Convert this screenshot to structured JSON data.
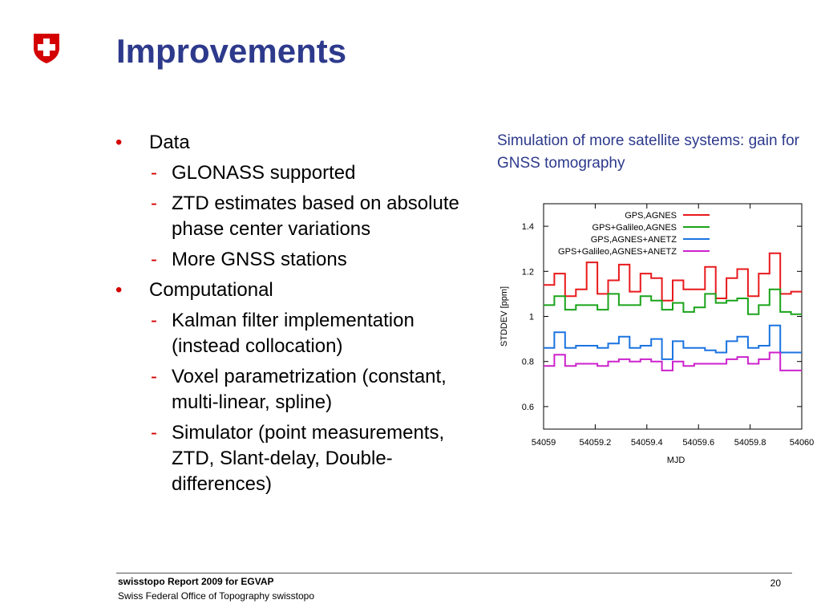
{
  "title": "Improvements",
  "logo_icon": "swiss-cross-shield-icon",
  "brand_color": "#d40000",
  "title_color": "#2d3a8c",
  "bullets": [
    {
      "label": "Data",
      "sub": [
        "GLONASS supported",
        "ZTD estimates based on absolute phase center variations",
        "More GNSS stations"
      ]
    },
    {
      "label": "Computational",
      "sub": [
        "Kalman filter implementation (instead collocation)",
        "Voxel parametrization (constant, multi-linear, spline)",
        "Simulator (point measurements, ZTD, Slant-delay, Double-differences)"
      ]
    }
  ],
  "chart_caption": "Simulation of more satellite systems: gain for GNSS tomography",
  "chart_data": {
    "type": "line",
    "step": true,
    "xlabel": "MJD",
    "ylabel": "STDDEV [ppm]",
    "xlim": [
      54059,
      54060
    ],
    "ylim": [
      0.5,
      1.5
    ],
    "xticks": [
      "54059",
      "54059.2",
      "54059.4",
      "54059.6",
      "54059.8",
      "54060"
    ],
    "yticks": [
      "0.6",
      "0.8",
      "1",
      "1.2",
      "1.4"
    ],
    "legend_position": "top-right",
    "grid": false,
    "x": [
      54059.0,
      54059.0417,
      54059.0833,
      54059.125,
      54059.1667,
      54059.2083,
      54059.25,
      54059.2917,
      54059.3333,
      54059.375,
      54059.4167,
      54059.4583,
      54059.5,
      54059.5417,
      54059.5833,
      54059.625,
      54059.6667,
      54059.7083,
      54059.75,
      54059.7917,
      54059.8333,
      54059.875,
      54059.9167,
      54059.9583
    ],
    "series": [
      {
        "name": "GPS,AGNES",
        "color": "#e8191c",
        "values": [
          1.14,
          1.19,
          1.09,
          1.12,
          1.24,
          1.1,
          1.16,
          1.23,
          1.11,
          1.19,
          1.17,
          1.07,
          1.16,
          1.12,
          1.12,
          1.22,
          1.08,
          1.17,
          1.21,
          1.09,
          1.19,
          1.28,
          1.1,
          1.11
        ]
      },
      {
        "name": "GPS+Galileo,AGNES",
        "color": "#1aa31a",
        "values": [
          1.05,
          1.09,
          1.03,
          1.05,
          1.05,
          1.03,
          1.1,
          1.05,
          1.05,
          1.09,
          1.07,
          1.03,
          1.06,
          1.02,
          1.04,
          1.1,
          1.06,
          1.07,
          1.08,
          1.01,
          1.05,
          1.12,
          1.02,
          1.01
        ]
      },
      {
        "name": "GPS,AGNES+ANETZ",
        "color": "#1a73e0",
        "values": [
          0.86,
          0.93,
          0.86,
          0.87,
          0.87,
          0.86,
          0.88,
          0.91,
          0.86,
          0.87,
          0.9,
          0.81,
          0.89,
          0.86,
          0.86,
          0.85,
          0.84,
          0.89,
          0.91,
          0.86,
          0.87,
          0.96,
          0.84,
          0.84
        ]
      },
      {
        "name": "GPS+Galileo,AGNES+ANETZ",
        "color": "#cc22cc",
        "values": [
          0.78,
          0.83,
          0.78,
          0.79,
          0.79,
          0.78,
          0.8,
          0.81,
          0.8,
          0.81,
          0.8,
          0.76,
          0.8,
          0.78,
          0.79,
          0.79,
          0.79,
          0.81,
          0.82,
          0.79,
          0.81,
          0.84,
          0.76,
          0.76
        ]
      }
    ]
  },
  "footer": {
    "report": "swisstopo Report 2009 for EGVAP",
    "org": "Swiss Federal Office of Topography swisstopo",
    "page_number": "20"
  }
}
